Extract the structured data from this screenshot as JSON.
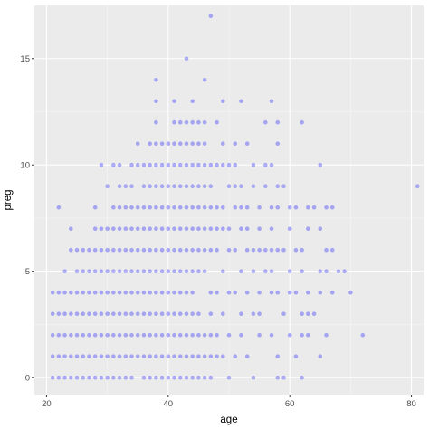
{
  "chart_data": {
    "type": "scatter",
    "title": "",
    "xlabel": "age",
    "ylabel": "preg",
    "xlim": [
      18,
      82
    ],
    "ylim": [
      -0.8,
      17.5
    ],
    "x_ticks": [
      20,
      40,
      60,
      80
    ],
    "y_ticks": [
      0,
      5,
      10,
      15
    ],
    "grid": true,
    "colors": {
      "point": "#0000ff",
      "panel": "#ebebeb",
      "grid_major": "#ffffff",
      "grid_minor": "#f5f5f5",
      "tick_text": "#4d4d4d",
      "tick_mark": "#333333"
    },
    "point_alpha": 0.3,
    "points": [
      [
        21,
        0
      ],
      [
        21,
        1
      ],
      [
        21,
        2
      ],
      [
        21,
        3
      ],
      [
        21,
        4
      ],
      [
        22,
        0
      ],
      [
        22,
        1
      ],
      [
        22,
        2
      ],
      [
        22,
        3
      ],
      [
        22,
        4
      ],
      [
        22,
        8
      ],
      [
        23,
        0
      ],
      [
        23,
        1
      ],
      [
        23,
        2
      ],
      [
        23,
        3
      ],
      [
        23,
        4
      ],
      [
        23,
        5
      ],
      [
        24,
        0
      ],
      [
        24,
        1
      ],
      [
        24,
        2
      ],
      [
        24,
        3
      ],
      [
        24,
        4
      ],
      [
        24,
        6
      ],
      [
        24,
        7
      ],
      [
        25,
        0
      ],
      [
        25,
        1
      ],
      [
        25,
        2
      ],
      [
        25,
        3
      ],
      [
        25,
        4
      ],
      [
        25,
        5
      ],
      [
        25,
        6
      ],
      [
        26,
        0
      ],
      [
        26,
        1
      ],
      [
        26,
        2
      ],
      [
        26,
        3
      ],
      [
        26,
        4
      ],
      [
        26,
        5
      ],
      [
        26,
        6
      ],
      [
        27,
        0
      ],
      [
        27,
        1
      ],
      [
        27,
        2
      ],
      [
        27,
        3
      ],
      [
        27,
        4
      ],
      [
        27,
        5
      ],
      [
        27,
        6
      ],
      [
        28,
        0
      ],
      [
        28,
        1
      ],
      [
        28,
        2
      ],
      [
        28,
        3
      ],
      [
        28,
        4
      ],
      [
        28,
        5
      ],
      [
        28,
        6
      ],
      [
        28,
        7
      ],
      [
        28,
        8
      ],
      [
        29,
        0
      ],
      [
        29,
        1
      ],
      [
        29,
        2
      ],
      [
        29,
        3
      ],
      [
        29,
        4
      ],
      [
        29,
        5
      ],
      [
        29,
        6
      ],
      [
        29,
        7
      ],
      [
        29,
        10
      ],
      [
        30,
        0
      ],
      [
        30,
        1
      ],
      [
        30,
        2
      ],
      [
        30,
        3
      ],
      [
        30,
        4
      ],
      [
        30,
        5
      ],
      [
        30,
        6
      ],
      [
        30,
        7
      ],
      [
        30,
        9
      ],
      [
        31,
        0
      ],
      [
        31,
        1
      ],
      [
        31,
        2
      ],
      [
        31,
        3
      ],
      [
        31,
        4
      ],
      [
        31,
        5
      ],
      [
        31,
        6
      ],
      [
        31,
        7
      ],
      [
        31,
        8
      ],
      [
        31,
        10
      ],
      [
        32,
        0
      ],
      [
        32,
        1
      ],
      [
        32,
        2
      ],
      [
        32,
        3
      ],
      [
        32,
        4
      ],
      [
        32,
        5
      ],
      [
        32,
        6
      ],
      [
        32,
        7
      ],
      [
        32,
        8
      ],
      [
        32,
        9
      ],
      [
        32,
        10
      ],
      [
        33,
        0
      ],
      [
        33,
        1
      ],
      [
        33,
        2
      ],
      [
        33,
        3
      ],
      [
        33,
        4
      ],
      [
        33,
        5
      ],
      [
        33,
        6
      ],
      [
        33,
        7
      ],
      [
        33,
        8
      ],
      [
        33,
        9
      ],
      [
        34,
        0
      ],
      [
        34,
        1
      ],
      [
        34,
        2
      ],
      [
        34,
        3
      ],
      [
        34,
        4
      ],
      [
        34,
        5
      ],
      [
        34,
        6
      ],
      [
        34,
        7
      ],
      [
        34,
        8
      ],
      [
        34,
        9
      ],
      [
        34,
        10
      ],
      [
        35,
        1
      ],
      [
        35,
        2
      ],
      [
        35,
        3
      ],
      [
        35,
        4
      ],
      [
        35,
        5
      ],
      [
        35,
        6
      ],
      [
        35,
        7
      ],
      [
        35,
        8
      ],
      [
        35,
        10
      ],
      [
        35,
        11
      ],
      [
        36,
        0
      ],
      [
        36,
        1
      ],
      [
        36,
        2
      ],
      [
        36,
        3
      ],
      [
        36,
        4
      ],
      [
        36,
        5
      ],
      [
        36,
        6
      ],
      [
        36,
        7
      ],
      [
        36,
        8
      ],
      [
        36,
        9
      ],
      [
        36,
        10
      ],
      [
        37,
        0
      ],
      [
        37,
        1
      ],
      [
        37,
        2
      ],
      [
        37,
        3
      ],
      [
        37,
        4
      ],
      [
        37,
        5
      ],
      [
        37,
        6
      ],
      [
        37,
        7
      ],
      [
        37,
        8
      ],
      [
        37,
        9
      ],
      [
        37,
        10
      ],
      [
        37,
        11
      ],
      [
        38,
        0
      ],
      [
        38,
        1
      ],
      [
        38,
        2
      ],
      [
        38,
        3
      ],
      [
        38,
        4
      ],
      [
        38,
        5
      ],
      [
        38,
        6
      ],
      [
        38,
        7
      ],
      [
        38,
        8
      ],
      [
        38,
        9
      ],
      [
        38,
        10
      ],
      [
        38,
        11
      ],
      [
        38,
        12
      ],
      [
        38,
        13
      ],
      [
        38,
        14
      ],
      [
        39,
        0
      ],
      [
        39,
        1
      ],
      [
        39,
        2
      ],
      [
        39,
        3
      ],
      [
        39,
        4
      ],
      [
        39,
        5
      ],
      [
        39,
        6
      ],
      [
        39,
        7
      ],
      [
        39,
        8
      ],
      [
        39,
        9
      ],
      [
        39,
        10
      ],
      [
        39,
        11
      ],
      [
        40,
        0
      ],
      [
        40,
        1
      ],
      [
        40,
        2
      ],
      [
        40,
        3
      ],
      [
        40,
        4
      ],
      [
        40,
        5
      ],
      [
        40,
        6
      ],
      [
        40,
        7
      ],
      [
        40,
        8
      ],
      [
        40,
        9
      ],
      [
        40,
        10
      ],
      [
        40,
        11
      ],
      [
        41,
        0
      ],
      [
        41,
        1
      ],
      [
        41,
        2
      ],
      [
        41,
        3
      ],
      [
        41,
        4
      ],
      [
        41,
        5
      ],
      [
        41,
        6
      ],
      [
        41,
        7
      ],
      [
        41,
        8
      ],
      [
        41,
        9
      ],
      [
        41,
        10
      ],
      [
        41,
        11
      ],
      [
        41,
        12
      ],
      [
        41,
        13
      ],
      [
        42,
        0
      ],
      [
        42,
        1
      ],
      [
        42,
        2
      ],
      [
        42,
        3
      ],
      [
        42,
        4
      ],
      [
        42,
        5
      ],
      [
        42,
        6
      ],
      [
        42,
        7
      ],
      [
        42,
        8
      ],
      [
        42,
        9
      ],
      [
        42,
        10
      ],
      [
        42,
        11
      ],
      [
        42,
        12
      ],
      [
        43,
        0
      ],
      [
        43,
        1
      ],
      [
        43,
        2
      ],
      [
        43,
        3
      ],
      [
        43,
        4
      ],
      [
        43,
        5
      ],
      [
        43,
        6
      ],
      [
        43,
        7
      ],
      [
        43,
        8
      ],
      [
        43,
        9
      ],
      [
        43,
        10
      ],
      [
        43,
        11
      ],
      [
        43,
        12
      ],
      [
        43,
        15
      ],
      [
        44,
        0
      ],
      [
        44,
        1
      ],
      [
        44,
        2
      ],
      [
        44,
        3
      ],
      [
        44,
        4
      ],
      [
        44,
        5
      ],
      [
        44,
        6
      ],
      [
        44,
        7
      ],
      [
        44,
        8
      ],
      [
        44,
        9
      ],
      [
        44,
        10
      ],
      [
        44,
        11
      ],
      [
        44,
        12
      ],
      [
        44,
        13
      ],
      [
        45,
        0
      ],
      [
        45,
        1
      ],
      [
        45,
        2
      ],
      [
        45,
        3
      ],
      [
        45,
        5
      ],
      [
        45,
        6
      ],
      [
        45,
        7
      ],
      [
        45,
        8
      ],
      [
        45,
        9
      ],
      [
        45,
        10
      ],
      [
        45,
        11
      ],
      [
        45,
        12
      ],
      [
        46,
        0
      ],
      [
        46,
        1
      ],
      [
        46,
        2
      ],
      [
        46,
        5
      ],
      [
        46,
        6
      ],
      [
        46,
        7
      ],
      [
        46,
        8
      ],
      [
        46,
        9
      ],
      [
        46,
        10
      ],
      [
        46,
        11
      ],
      [
        46,
        12
      ],
      [
        46,
        14
      ],
      [
        47,
        0
      ],
      [
        47,
        1
      ],
      [
        47,
        2
      ],
      [
        47,
        3
      ],
      [
        47,
        4
      ],
      [
        47,
        6
      ],
      [
        47,
        7
      ],
      [
        47,
        8
      ],
      [
        47,
        9
      ],
      [
        47,
        10
      ],
      [
        47,
        17
      ],
      [
        48,
        1
      ],
      [
        48,
        2
      ],
      [
        48,
        4
      ],
      [
        48,
        6
      ],
      [
        48,
        7
      ],
      [
        48,
        8
      ],
      [
        48,
        10
      ],
      [
        48,
        12
      ],
      [
        49,
        1
      ],
      [
        49,
        3
      ],
      [
        49,
        5
      ],
      [
        49,
        7
      ],
      [
        49,
        8
      ],
      [
        49,
        10
      ],
      [
        49,
        11
      ],
      [
        49,
        13
      ],
      [
        50,
        0
      ],
      [
        50,
        2
      ],
      [
        50,
        4
      ],
      [
        50,
        6
      ],
      [
        50,
        7
      ],
      [
        50,
        9
      ],
      [
        50,
        10
      ],
      [
        51,
        1
      ],
      [
        51,
        4
      ],
      [
        51,
        6
      ],
      [
        51,
        8
      ],
      [
        51,
        9
      ],
      [
        51,
        10
      ],
      [
        51,
        11
      ],
      [
        52,
        2
      ],
      [
        52,
        3
      ],
      [
        52,
        5
      ],
      [
        52,
        7
      ],
      [
        52,
        8
      ],
      [
        52,
        9
      ],
      [
        52,
        13
      ],
      [
        53,
        1
      ],
      [
        53,
        4
      ],
      [
        53,
        6
      ],
      [
        53,
        7
      ],
      [
        53,
        8
      ],
      [
        53,
        11
      ],
      [
        54,
        0
      ],
      [
        54,
        3
      ],
      [
        54,
        5
      ],
      [
        54,
        6
      ],
      [
        54,
        9
      ],
      [
        54,
        10
      ],
      [
        55,
        2
      ],
      [
        55,
        3
      ],
      [
        55,
        4
      ],
      [
        55,
        6
      ],
      [
        55,
        7
      ],
      [
        55,
        8
      ],
      [
        56,
        5
      ],
      [
        56,
        6
      ],
      [
        56,
        9
      ],
      [
        56,
        10
      ],
      [
        56,
        12
      ],
      [
        57,
        2
      ],
      [
        57,
        4
      ],
      [
        57,
        5
      ],
      [
        57,
        6
      ],
      [
        57,
        7
      ],
      [
        57,
        8
      ],
      [
        57,
        10
      ],
      [
        57,
        13
      ],
      [
        58,
        0
      ],
      [
        58,
        1
      ],
      [
        58,
        4
      ],
      [
        58,
        6
      ],
      [
        58,
        8
      ],
      [
        58,
        9
      ],
      [
        58,
        11
      ],
      [
        58,
        12
      ],
      [
        59,
        0
      ],
      [
        59,
        3
      ],
      [
        59,
        6
      ],
      [
        59,
        9
      ],
      [
        60,
        2
      ],
      [
        60,
        4
      ],
      [
        60,
        5
      ],
      [
        60,
        7
      ],
      [
        60,
        8
      ],
      [
        61,
        1
      ],
      [
        61,
        4
      ],
      [
        61,
        6
      ],
      [
        61,
        8
      ],
      [
        62,
        0
      ],
      [
        62,
        2
      ],
      [
        62,
        3
      ],
      [
        62,
        5
      ],
      [
        62,
        6
      ],
      [
        62,
        12
      ],
      [
        63,
        2
      ],
      [
        63,
        3
      ],
      [
        63,
        4
      ],
      [
        63,
        7
      ],
      [
        63,
        8
      ],
      [
        64,
        3
      ],
      [
        64,
        8
      ],
      [
        65,
        1
      ],
      [
        65,
        4
      ],
      [
        65,
        5
      ],
      [
        65,
        7
      ],
      [
        65,
        10
      ],
      [
        66,
        2
      ],
      [
        66,
        5
      ],
      [
        66,
        6
      ],
      [
        66,
        8
      ],
      [
        67,
        4
      ],
      [
        67,
        6
      ],
      [
        67,
        8
      ],
      [
        68,
        5
      ],
      [
        69,
        5
      ],
      [
        70,
        4
      ],
      [
        72,
        2
      ],
      [
        81,
        9
      ]
    ]
  }
}
